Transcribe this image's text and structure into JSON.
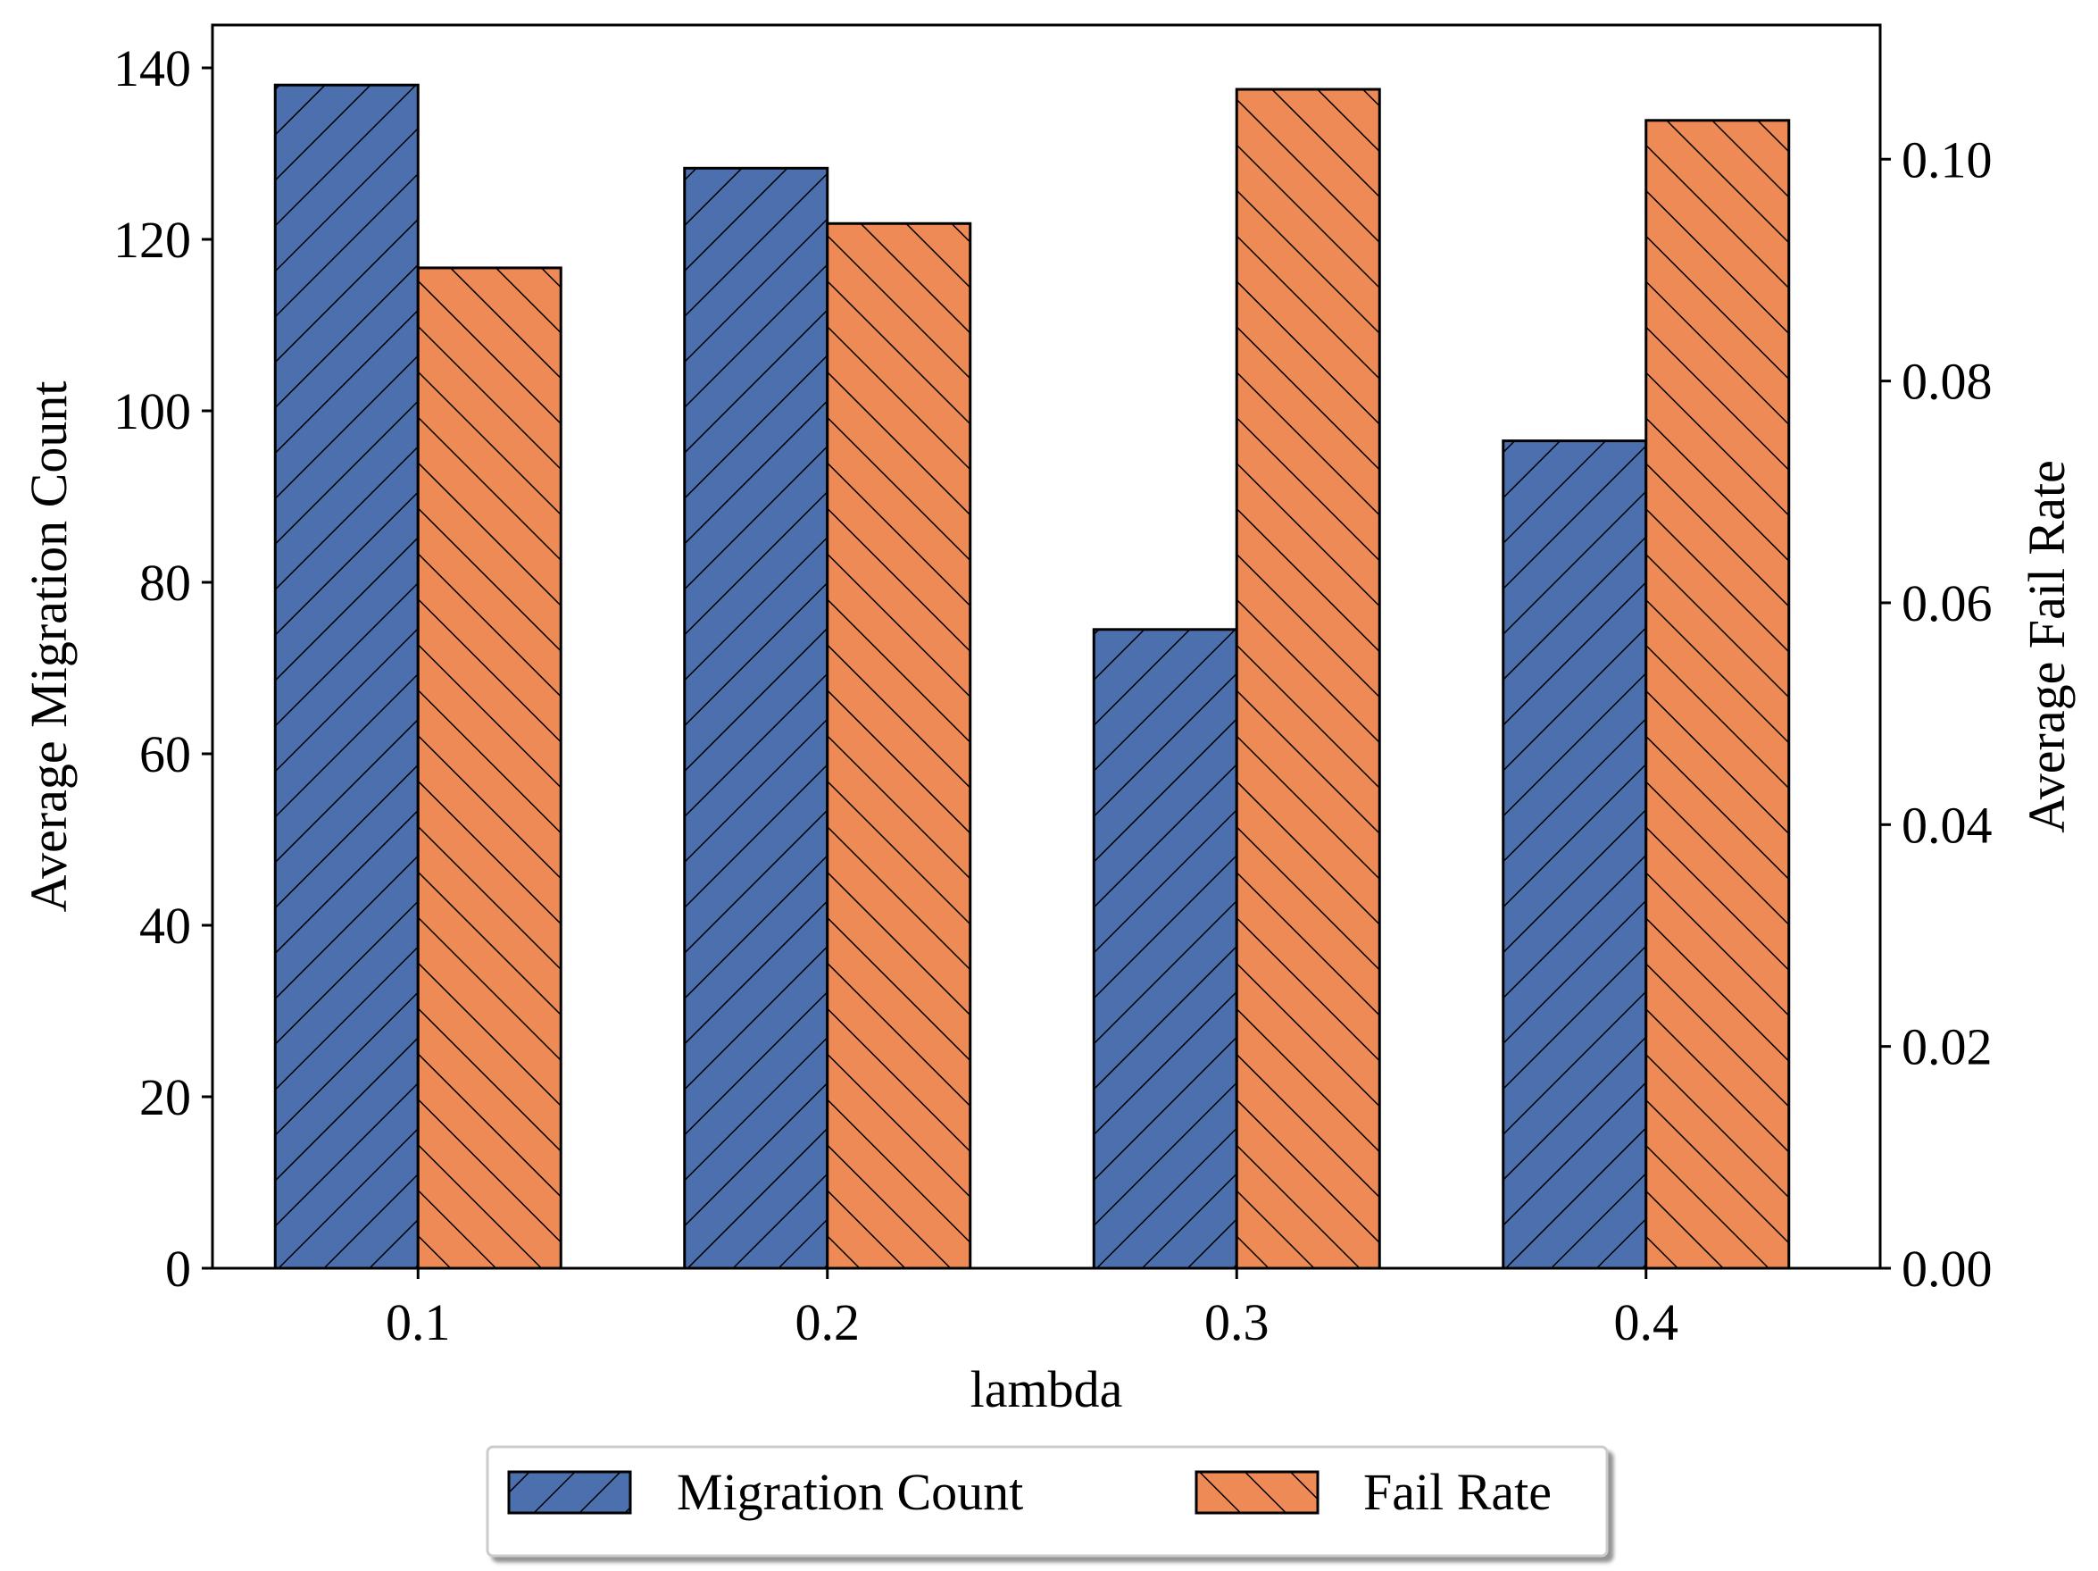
{
  "chart_data": {
    "type": "bar",
    "categories": [
      "0.1",
      "0.2",
      "0.3",
      "0.4"
    ],
    "xlabel": "lambda",
    "series": [
      {
        "name": "Migration Count",
        "axis": "left",
        "values": [
          138,
          128.3,
          74.5,
          96.5
        ],
        "color": "#4c6fae",
        "hatch": "forward-diagonal"
      },
      {
        "name": "Fail Rate",
        "axis": "right",
        "values": [
          0.0902,
          0.0942,
          0.1063,
          0.1035
        ],
        "color": "#ee8a55",
        "hatch": "backward-diagonal"
      }
    ],
    "y_left": {
      "label": "Average Migration Count",
      "lim": [
        0,
        145
      ],
      "ticks": [
        "0",
        "20",
        "40",
        "60",
        "80",
        "100",
        "120",
        "140"
      ]
    },
    "y_right": {
      "label": "Average Fail Rate",
      "lim": [
        0,
        0.1121
      ],
      "ticks": [
        "0.00",
        "0.02",
        "0.04",
        "0.06",
        "0.08",
        "0.10"
      ]
    },
    "legend": {
      "placement": "bottom-center, below plot",
      "items": [
        "Migration Count",
        "Fail Rate"
      ]
    },
    "grid": false
  }
}
